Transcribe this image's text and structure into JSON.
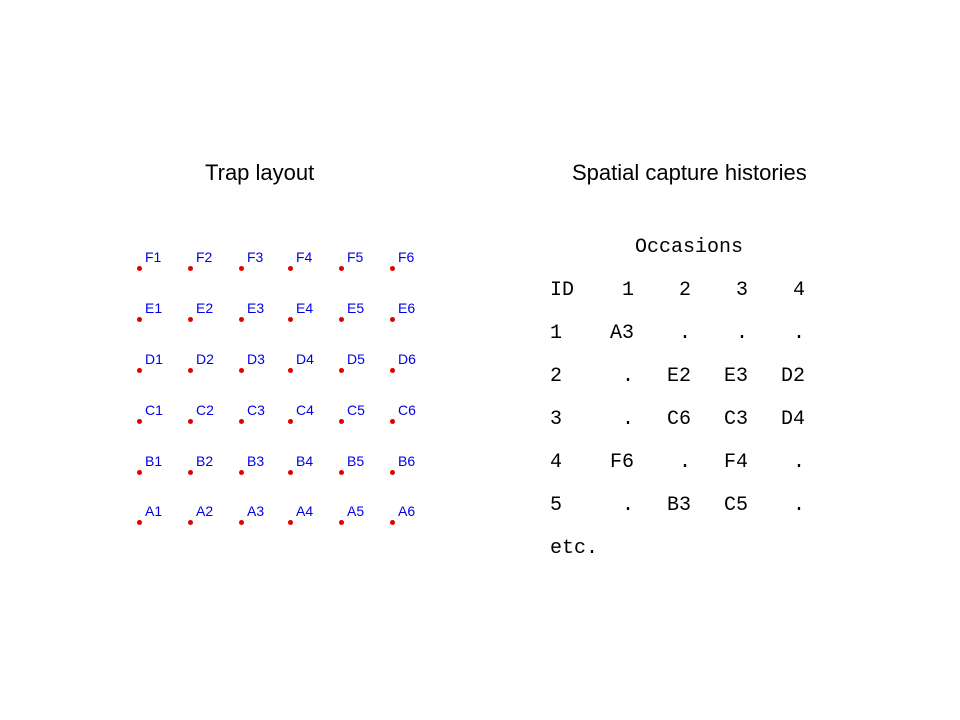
{
  "left_title": "Trap layout",
  "right_title": "Spatial capture histories",
  "traps": {
    "rows": [
      [
        "F1",
        "F2",
        "F3",
        "F4",
        "F5",
        "F6"
      ],
      [
        "E1",
        "E2",
        "E3",
        "E4",
        "E5",
        "E6"
      ],
      [
        "D1",
        "D2",
        "D3",
        "D4",
        "D5",
        "D6"
      ],
      [
        "C1",
        "C2",
        "C3",
        "C4",
        "C5",
        "C6"
      ],
      [
        "B1",
        "B2",
        "B3",
        "B4",
        "B5",
        "B6"
      ],
      [
        "A1",
        "A2",
        "A3",
        "A4",
        "A5",
        "A6"
      ]
    ],
    "dot_color": "#e00000",
    "label_color": "#0000e6"
  },
  "histories": {
    "occasions_label": "Occasions",
    "header": [
      "ID",
      "1",
      "2",
      "3",
      "4"
    ],
    "rows": [
      [
        "1",
        "A3",
        ".",
        ".",
        "."
      ],
      [
        "2",
        ".",
        "E2",
        "E3",
        "D2"
      ],
      [
        "3",
        ".",
        "C6",
        "C3",
        "D4"
      ],
      [
        "4",
        "F6",
        ".",
        "F4",
        "."
      ],
      [
        "5",
        ".",
        "B3",
        "C5",
        "."
      ]
    ],
    "etc": "etc."
  }
}
